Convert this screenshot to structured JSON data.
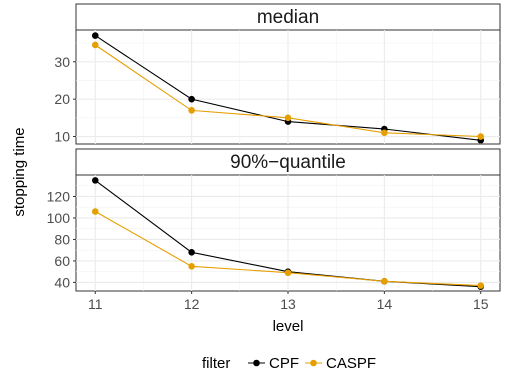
{
  "chart_data": {
    "type": "line",
    "xlabel": "level",
    "ylabel": "stopping time",
    "x": [
      11,
      12,
      13,
      14,
      15
    ],
    "x_ticks": [
      11,
      12,
      13,
      14,
      15
    ],
    "legend": {
      "title": "filter",
      "position": "bottom",
      "entries": [
        "CPF",
        "CASPF"
      ]
    },
    "grid": true,
    "panels": [
      {
        "label": "median",
        "ylim": [
          8,
          38.5
        ],
        "y_ticks": [
          10,
          20,
          30
        ],
        "series": [
          {
            "name": "CPF",
            "color": "#000000",
            "values": [
              37,
              20,
              14,
              12,
              9
            ]
          },
          {
            "name": "CASPF",
            "color": "#E69F00",
            "values": [
              34.5,
              17,
              15,
              11,
              10
            ]
          }
        ]
      },
      {
        "label": "90%−quantile",
        "ylim": [
          32,
          140
        ],
        "y_ticks": [
          40,
          60,
          80,
          100,
          120
        ],
        "series": [
          {
            "name": "CPF",
            "color": "#000000",
            "values": [
              135,
              68,
              50,
              41,
              36
            ]
          },
          {
            "name": "CASPF",
            "color": "#E69F00",
            "values": [
              106,
              55,
              49,
              41,
              37
            ]
          }
        ]
      }
    ]
  }
}
